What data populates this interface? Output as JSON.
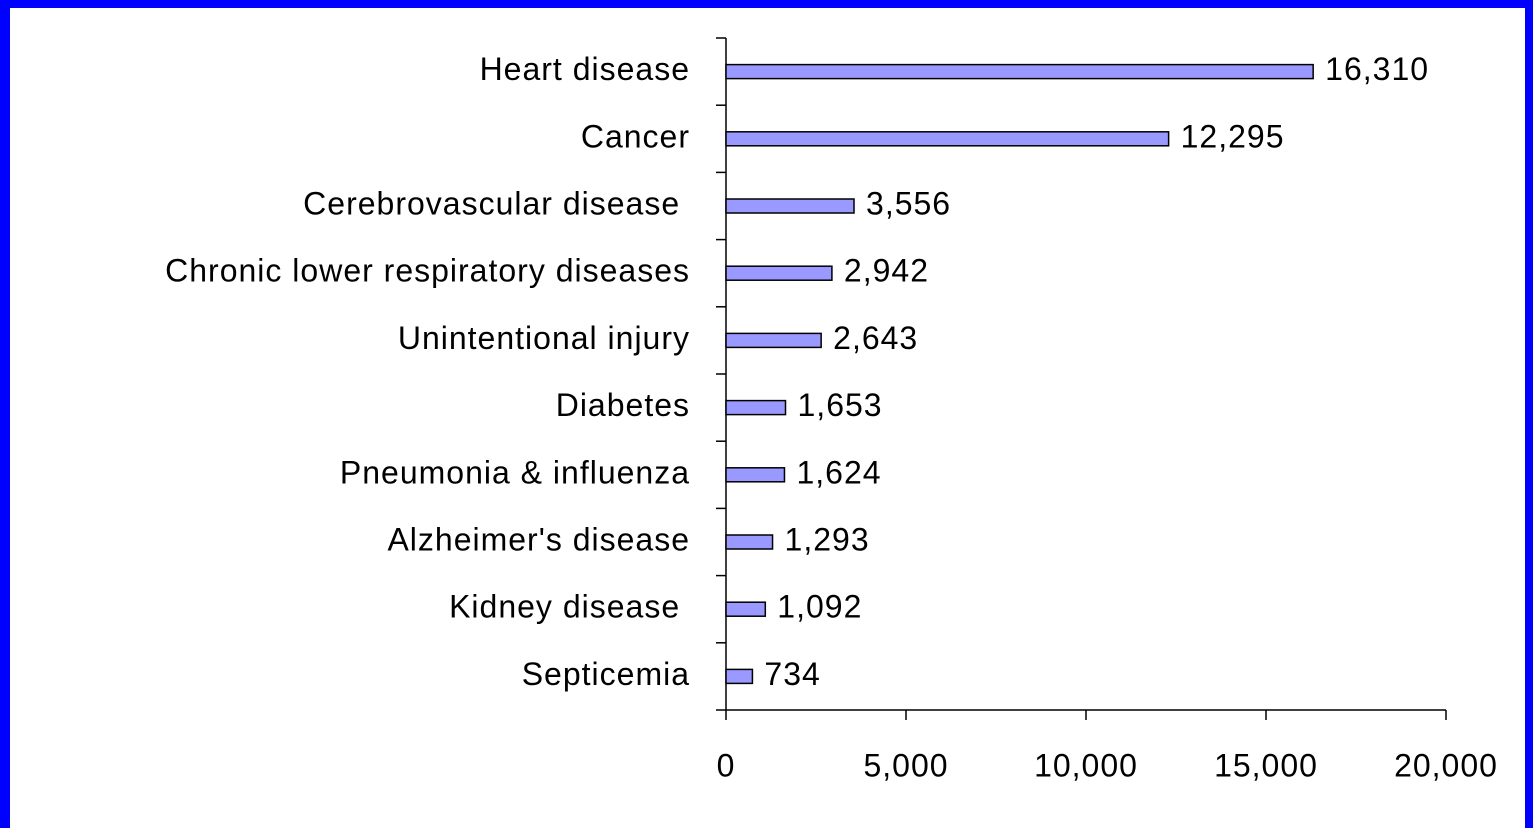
{
  "chart_data": {
    "type": "bar",
    "orientation": "horizontal",
    "categories": [
      "Heart disease",
      "Cancer",
      "Cerebrovascular disease ",
      "Chronic lower respiratory diseases",
      "Unintentional injury",
      "Diabetes",
      "Pneumonia & influenza",
      "Alzheimer's disease",
      "Kidney disease ",
      "Septicemia"
    ],
    "values": [
      16310,
      12295,
      3556,
      2942,
      2643,
      1653,
      1624,
      1293,
      1092,
      734
    ],
    "value_labels": [
      "16,310",
      "12,295",
      "3,556",
      "2,942",
      "2,643",
      "1,653",
      "1,624",
      "1,293",
      "1,092",
      "734"
    ],
    "color": "#9999ff",
    "xlim": [
      0,
      20000
    ],
    "xticks": [
      0,
      {
        "value": 5000,
        "label": "5,000"
      },
      {
        "value": 10000,
        "label": "10,000"
      },
      {
        "value": 15000,
        "label": "15,000"
      },
      {
        "value": 20000,
        "label": "20,000"
      }
    ]
  }
}
